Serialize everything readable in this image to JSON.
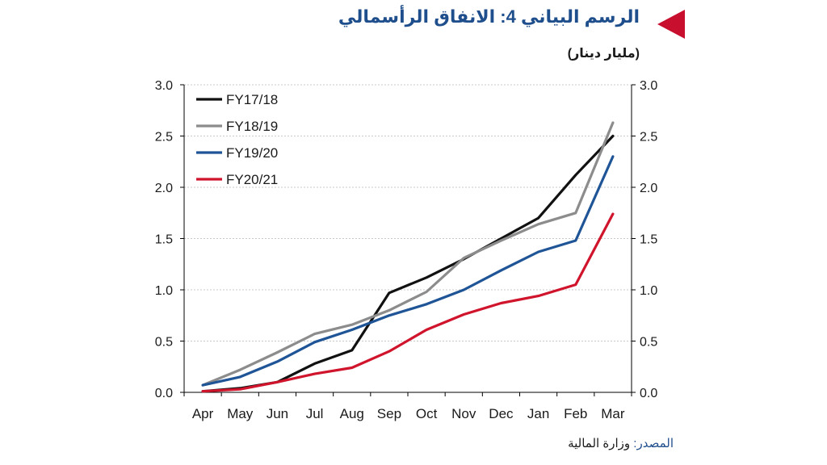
{
  "title": "الرسم البياني 4: الانفاق الرأسمالي",
  "unit": "(مليار دينار)",
  "source": {
    "label": "المصدر:",
    "text": "وزارة المالية"
  },
  "chart_data": {
    "type": "line",
    "categories": [
      "Apr",
      "May",
      "Jun",
      "Jul",
      "Aug",
      "Sep",
      "Oct",
      "Nov",
      "Dec",
      "Jan",
      "Feb",
      "Mar"
    ],
    "ylim": [
      0,
      3
    ],
    "yticks": [
      "0.0",
      "0.5",
      "1.0",
      "1.5",
      "2.0",
      "2.5",
      "3.0"
    ],
    "ytick_values": [
      0,
      0.5,
      1,
      1.5,
      2,
      2.5,
      3
    ],
    "secondary_y_axis": true,
    "grid": true,
    "legend_position": "top-left",
    "series": [
      {
        "name": "FY17/18",
        "color": "#111111",
        "values": [
          0.01,
          0.04,
          0.1,
          0.28,
          0.41,
          0.97,
          1.12,
          1.3,
          1.5,
          1.7,
          2.12,
          2.5
        ]
      },
      {
        "name": "FY18/19",
        "color": "#8c8c8c",
        "values": [
          0.07,
          0.22,
          0.39,
          0.57,
          0.66,
          0.8,
          0.98,
          1.31,
          1.48,
          1.64,
          1.75,
          2.63
        ]
      },
      {
        "name": "FY19/20",
        "color": "#1f5596",
        "values": [
          0.07,
          0.15,
          0.3,
          0.49,
          0.61,
          0.75,
          0.86,
          1.0,
          1.19,
          1.37,
          1.48,
          2.3
        ]
      },
      {
        "name": "FY20/21",
        "color": "#d0142c",
        "values": [
          0.01,
          0.03,
          0.1,
          0.18,
          0.24,
          0.4,
          0.61,
          0.76,
          0.87,
          0.94,
          1.05,
          1.74
        ]
      }
    ]
  }
}
